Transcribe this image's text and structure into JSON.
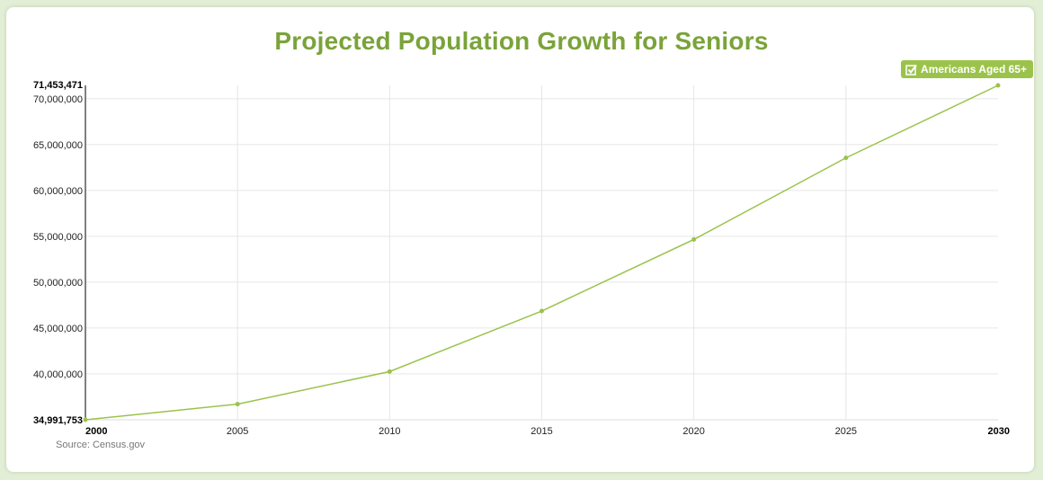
{
  "chart_data": {
    "type": "line",
    "title": "Projected Population Growth for Seniors",
    "x": [
      2000,
      2005,
      2010,
      2015,
      2020,
      2025,
      2030
    ],
    "series": [
      {
        "name": "Americans Aged 65+",
        "color": "#9bc34b",
        "values": [
          34991753,
          36700000,
          40250000,
          46850000,
          54650000,
          63550000,
          71453471
        ]
      }
    ],
    "ylim": [
      34991753,
      71453471
    ],
    "xlim": [
      2000,
      2030
    ],
    "yticks": [
      40000000,
      45000000,
      50000000,
      55000000,
      60000000,
      65000000,
      70000000
    ],
    "ytick_labels": [
      "40,000,000",
      "45,000,000",
      "50,000,000",
      "55,000,000",
      "60,000,000",
      "65,000,000",
      "70,000,000"
    ],
    "ymin_label": "34,991,753",
    "ymax_label": "71,453,471",
    "xtick_labels": [
      "2000",
      "2005",
      "2010",
      "2015",
      "2020",
      "2025",
      "2030"
    ],
    "grid": true,
    "legend_position": "top-right",
    "xlabel": "",
    "ylabel": ""
  },
  "legend": {
    "label": "Americans Aged 65+",
    "checked": true,
    "icon": "checkbox-checked-icon"
  },
  "source": "Source:  Census.gov"
}
